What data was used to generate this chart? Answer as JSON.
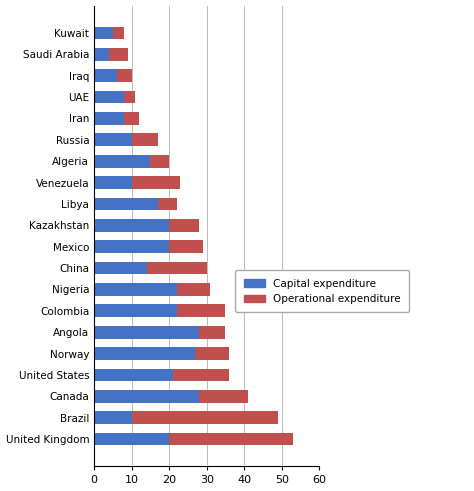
{
  "countries": [
    "Kuwait",
    "Saudi Arabia",
    "Iraq",
    "UAE",
    "Iran",
    "Russia",
    "Algeria",
    "Venezuela",
    "Libya",
    "Kazakhstan",
    "Mexico",
    "China",
    "Nigeria",
    "Colombia",
    "Angola",
    "Norway",
    "United States",
    "Canada",
    "Brazil",
    "United Kingdom"
  ],
  "capital_expenditure": [
    5,
    4,
    6,
    8,
    8,
    10,
    15,
    10,
    17,
    20,
    20,
    14,
    22,
    22,
    28,
    27,
    21,
    28,
    10,
    20
  ],
  "operational_expenditure": [
    3,
    5,
    4,
    3,
    4,
    7,
    5,
    13,
    5,
    8,
    9,
    16,
    9,
    13,
    7,
    9,
    15,
    13,
    39,
    33
  ],
  "capital_color": "#4472C4",
  "operational_color": "#C0504D",
  "xlim": [
    0,
    60
  ],
  "xticks": [
    0,
    10,
    20,
    30,
    40,
    50,
    60
  ],
  "legend_labels": [
    "Capital expenditure",
    "Operational expenditure"
  ],
  "bar_height": 0.6,
  "background_color": "#FFFFFF",
  "grid_color": "#BBBBBB"
}
